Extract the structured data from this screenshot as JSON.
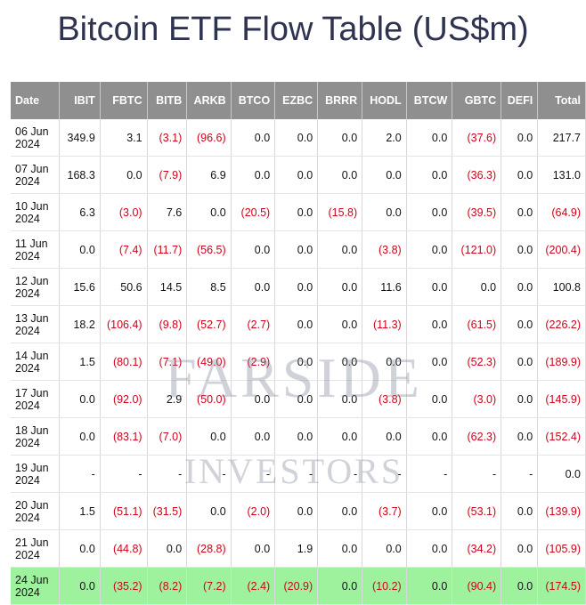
{
  "title": "Bitcoin ETF Flow Table (US$m)",
  "columns": [
    "Date",
    "IBIT",
    "FBTC",
    "BITB",
    "ARKB",
    "BTCO",
    "EZBC",
    "BRRR",
    "HODL",
    "BTCW",
    "GBTC",
    "DEFI",
    "Total"
  ],
  "rows": [
    [
      "06 Jun 2024",
      "349.9",
      "3.1",
      "(3.1)",
      "(96.6)",
      "0.0",
      "0.0",
      "0.0",
      "2.0",
      "0.0",
      "(37.6)",
      "0.0",
      "217.7"
    ],
    [
      "07 Jun 2024",
      "168.3",
      "0.0",
      "(7.9)",
      "6.9",
      "0.0",
      "0.0",
      "0.0",
      "0.0",
      "0.0",
      "(36.3)",
      "0.0",
      "131.0"
    ],
    [
      "10 Jun 2024",
      "6.3",
      "(3.0)",
      "7.6",
      "0.0",
      "(20.5)",
      "0.0",
      "(15.8)",
      "0.0",
      "0.0",
      "(39.5)",
      "0.0",
      "(64.9)"
    ],
    [
      "11 Jun 2024",
      "0.0",
      "(7.4)",
      "(11.7)",
      "(56.5)",
      "0.0",
      "0.0",
      "0.0",
      "(3.8)",
      "0.0",
      "(121.0)",
      "0.0",
      "(200.4)"
    ],
    [
      "12 Jun 2024",
      "15.6",
      "50.6",
      "14.5",
      "8.5",
      "0.0",
      "0.0",
      "0.0",
      "11.6",
      "0.0",
      "0.0",
      "0.0",
      "100.8"
    ],
    [
      "13 Jun 2024",
      "18.2",
      "(106.4)",
      "(9.8)",
      "(52.7)",
      "(2.7)",
      "0.0",
      "0.0",
      "(11.3)",
      "0.0",
      "(61.5)",
      "0.0",
      "(226.2)"
    ],
    [
      "14 Jun 2024",
      "1.5",
      "(80.1)",
      "(7.1)",
      "(49.0)",
      "(2.9)",
      "0.0",
      "0.0",
      "0.0",
      "0.0",
      "(52.3)",
      "0.0",
      "(189.9)"
    ],
    [
      "17 Jun 2024",
      "0.0",
      "(92.0)",
      "2.9",
      "(50.0)",
      "0.0",
      "0.0",
      "0.0",
      "(3.8)",
      "0.0",
      "(3.0)",
      "0.0",
      "(145.9)"
    ],
    [
      "18 Jun 2024",
      "0.0",
      "(83.1)",
      "(7.0)",
      "0.0",
      "0.0",
      "0.0",
      "0.0",
      "0.0",
      "0.0",
      "(62.3)",
      "0.0",
      "(152.4)"
    ],
    [
      "19 Jun 2024",
      "-",
      "-",
      "-",
      "-",
      "-",
      "-",
      "-",
      "-",
      "-",
      "-",
      "-",
      "0.0"
    ],
    [
      "20 Jun 2024",
      "1.5",
      "(51.1)",
      "(31.5)",
      "0.0",
      "(2.0)",
      "0.0",
      "0.0",
      "(3.7)",
      "0.0",
      "(53.1)",
      "0.0",
      "(139.9)"
    ],
    [
      "21 Jun 2024",
      "0.0",
      "(44.8)",
      "0.0",
      "(28.8)",
      "0.0",
      "1.9",
      "0.0",
      "0.0",
      "0.0",
      "(34.2)",
      "0.0",
      "(105.9)"
    ],
    [
      "24 Jun 2024",
      "0.0",
      "(35.2)",
      "(8.2)",
      "(7.2)",
      "(2.4)",
      "(20.9)",
      "0.0",
      "(10.2)",
      "0.0",
      "(90.4)",
      "0.0",
      "(174.5)"
    ]
  ],
  "highlighted_row": "24 Jun 2024",
  "watermark": {
    "line1": "FARSIDE",
    "line2": "INVESTORS"
  },
  "colors": {
    "header_bg": "#8f8f8f",
    "negative": "#d0021b",
    "highlight": "#9ef29e",
    "title": "#2e3350"
  }
}
